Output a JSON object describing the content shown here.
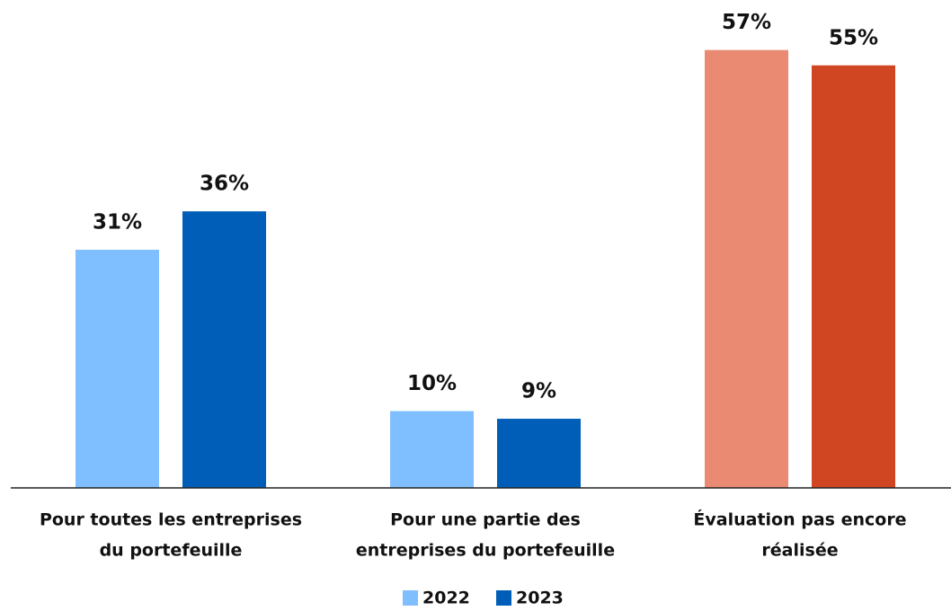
{
  "chart_data": {
    "type": "bar",
    "categories": [
      [
        "Pour toutes les entreprises",
        "du portefeuille"
      ],
      [
        "Pour une partie des",
        "entreprises du portefeuille"
      ],
      [
        "Évaluation pas encore",
        "réalisée"
      ]
    ],
    "series": [
      {
        "name": "2022",
        "color": "#80bfff",
        "colors": [
          "#80bfff",
          "#80bfff",
          "#ea8a73"
        ],
        "values": [
          31,
          10,
          57
        ],
        "value_labels": [
          "31%",
          "10%",
          "57%"
        ]
      },
      {
        "name": "2023",
        "color": "#005eb8",
        "colors": [
          "#005eb8",
          "#005eb8",
          "#d04622"
        ],
        "values": [
          36,
          9,
          55
        ],
        "value_labels": [
          "36%",
          "9%",
          "55%"
        ]
      }
    ],
    "legend": "bottom"
  }
}
